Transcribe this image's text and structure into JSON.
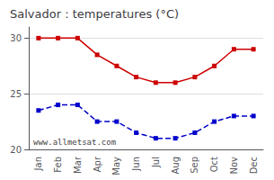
{
  "chart_data": {
    "type": "line",
    "title": "Salvador : temperatures (°C)",
    "categories": [
      "Jan",
      "Feb",
      "Mar",
      "Apr",
      "May",
      "Jun",
      "Jul",
      "Aug",
      "Sep",
      "Oct",
      "Nov",
      "Dec"
    ],
    "series": [
      {
        "color": "#cc0000",
        "marker": "square",
        "line_style": "solid",
        "values": [
          30.0,
          30.0,
          30.0,
          28.5,
          27.5,
          26.5,
          26.0,
          26.0,
          26.5,
          27.5,
          29.0,
          29.0
        ]
      },
      {
        "color": "#0000cc",
        "marker": "square",
        "line_style": "dashed",
        "values": [
          23.5,
          24.0,
          24.0,
          22.5,
          22.5,
          21.5,
          21.0,
          21.0,
          21.5,
          22.5,
          23.0,
          23.0
        ]
      }
    ],
    "ylim": [
      20,
      31
    ],
    "yticks": [
      20,
      25,
      30
    ],
    "grid": true,
    "annotation": "www.allmetsat.com"
  }
}
